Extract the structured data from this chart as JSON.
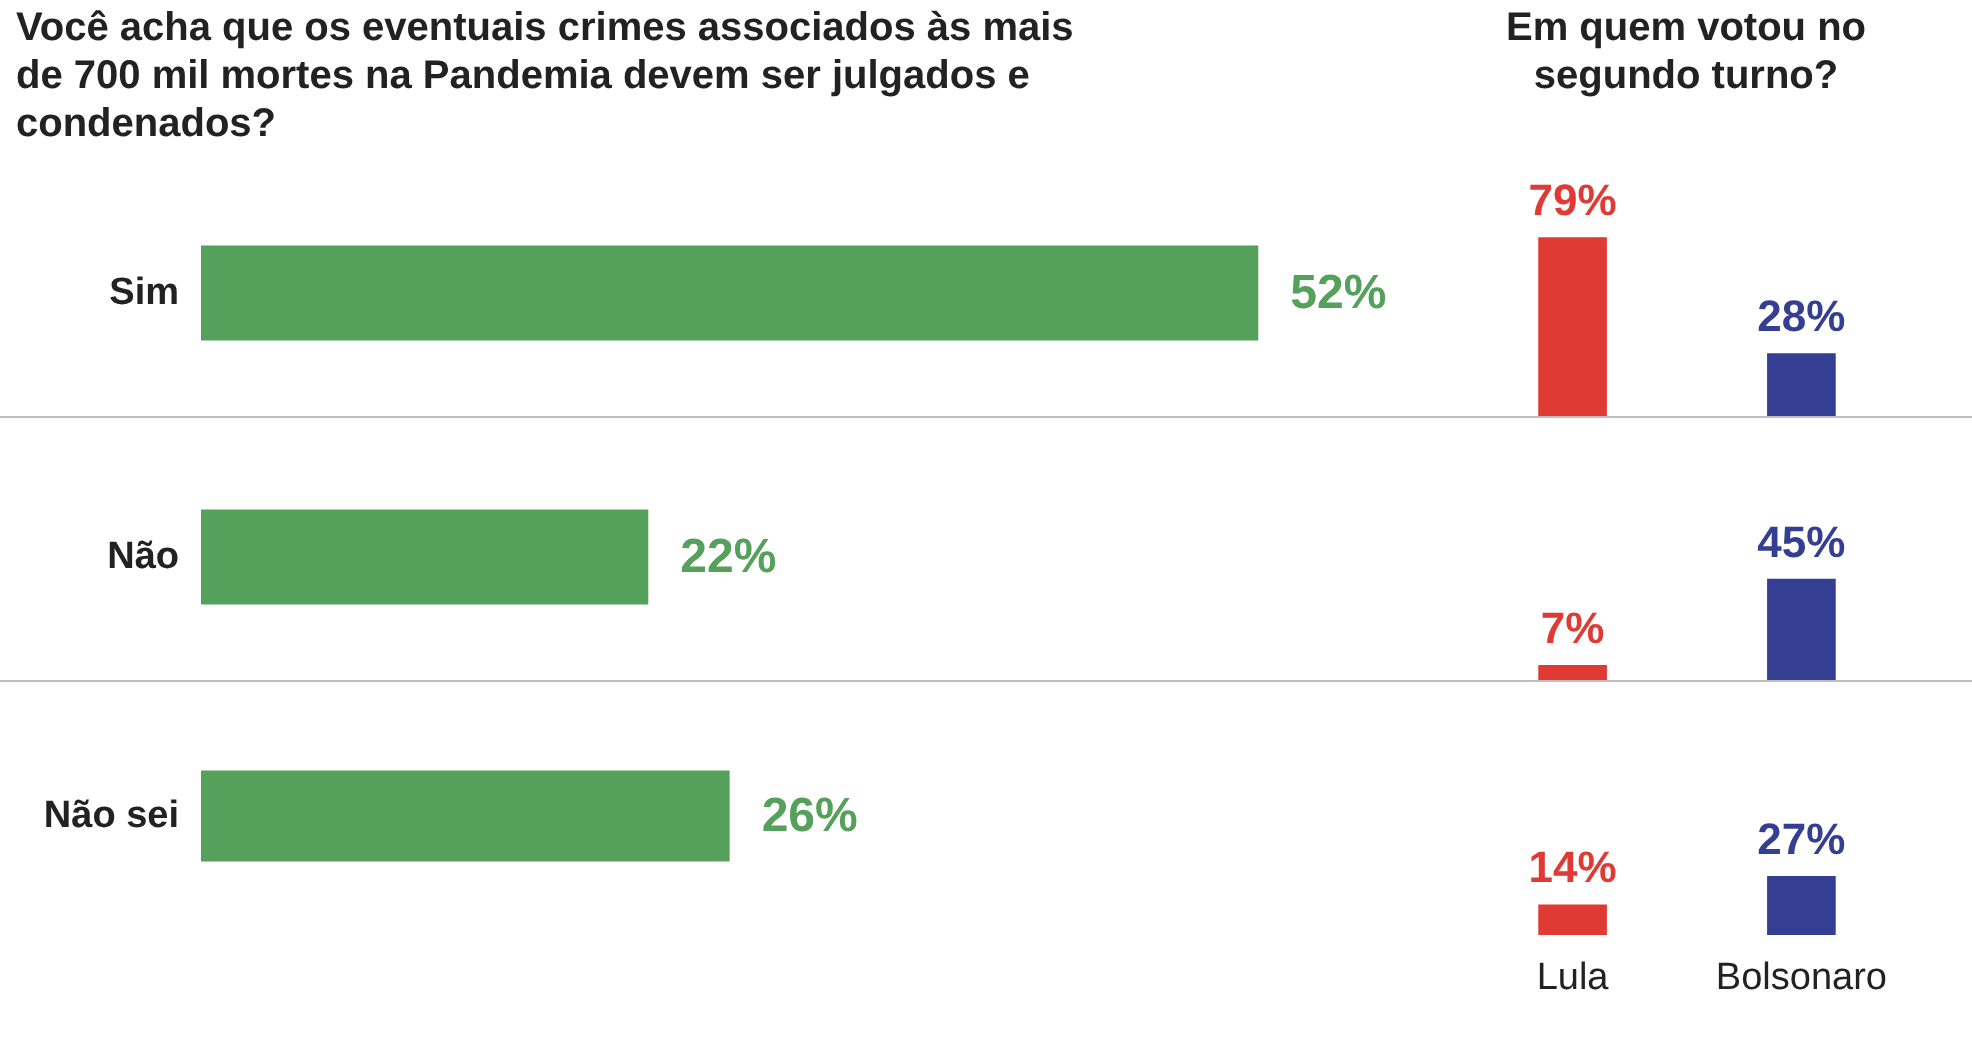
{
  "chart_data": [
    {
      "type": "bar",
      "orientation": "horizontal",
      "title": "Você acha que os eventuais crimes associados às mais de 700 mil mortes na Pandemia devem ser julgados e condenados?",
      "categories": [
        "Sim",
        "Não",
        "Não sei"
      ],
      "values": [
        52,
        22,
        26
      ],
      "value_labels": [
        "52%",
        "22%",
        "26%"
      ],
      "color": "#55a05a",
      "tick_labels": "y"
    },
    {
      "type": "bar",
      "title": "Em quem votou no segundo turno?",
      "categories": [
        null,
        null
      ],
      "values": [
        79,
        28
      ],
      "value_labels": [
        "79%",
        "28%"
      ],
      "colors": [
        "#e03a35",
        "#343f94"
      ],
      "tick_labels": false
    },
    {
      "type": "bar",
      "categories": [
        null,
        null
      ],
      "values": [
        7,
        45
      ],
      "value_labels": [
        "7%",
        "45%"
      ],
      "colors": [
        "#e03a35",
        "#343f94"
      ],
      "tick_labels": false
    },
    {
      "type": "bar",
      "categories": [
        "Lula",
        "Bolsonaro"
      ],
      "values": [
        14,
        27
      ],
      "value_labels": [
        "14%",
        "27%"
      ],
      "colors": [
        "#e03a35",
        "#343f94"
      ],
      "tick_labels": "x"
    }
  ]
}
